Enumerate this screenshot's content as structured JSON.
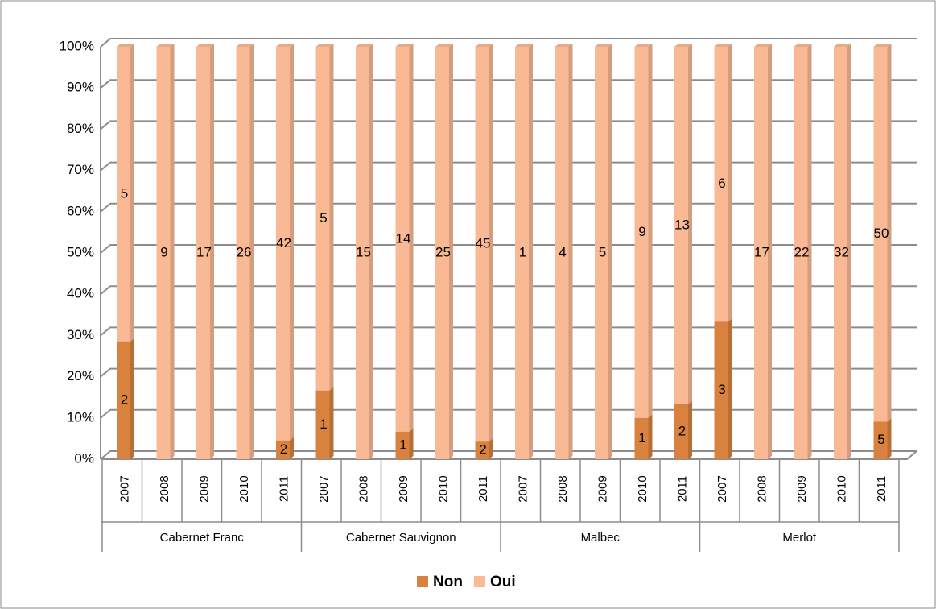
{
  "chart_data": {
    "type": "bar",
    "stack": "percent",
    "categories": [
      "2007",
      "2008",
      "2009",
      "2010",
      "2011",
      "2007",
      "2008",
      "2009",
      "2010",
      "2011",
      "2007",
      "2008",
      "2009",
      "2010",
      "2011",
      "2007",
      "2008",
      "2009",
      "2010",
      "2011"
    ],
    "groups": [
      "Cabernet Franc",
      "Cabernet Sauvignon",
      "Malbec",
      "Merlot"
    ],
    "series": [
      {
        "name": "Non",
        "color": "#d9823f",
        "values": [
          2,
          null,
          null,
          null,
          2,
          1,
          null,
          1,
          null,
          2,
          null,
          null,
          null,
          1,
          2,
          3,
          null,
          null,
          null,
          5
        ]
      },
      {
        "name": "Oui",
        "color": "#f9b994",
        "values": [
          5,
          9,
          17,
          26,
          42,
          5,
          15,
          14,
          25,
          45,
          1,
          4,
          5,
          9,
          13,
          6,
          17,
          22,
          32,
          50
        ]
      }
    ],
    "ylim": [
      0,
      100
    ],
    "yticks": [
      {
        "value": 0,
        "label": "0%"
      },
      {
        "value": 10,
        "label": "10%"
      },
      {
        "value": 20,
        "label": "20%"
      },
      {
        "value": 30,
        "label": "30%"
      },
      {
        "value": 40,
        "label": "40%"
      },
      {
        "value": 50,
        "label": "50%"
      },
      {
        "value": 60,
        "label": "60%"
      },
      {
        "value": 70,
        "label": "70%"
      },
      {
        "value": 80,
        "label": "80%"
      },
      {
        "value": 90,
        "label": "90%"
      },
      {
        "value": 100,
        "label": "100%"
      }
    ],
    "grid": true,
    "legend": "bottom"
  }
}
